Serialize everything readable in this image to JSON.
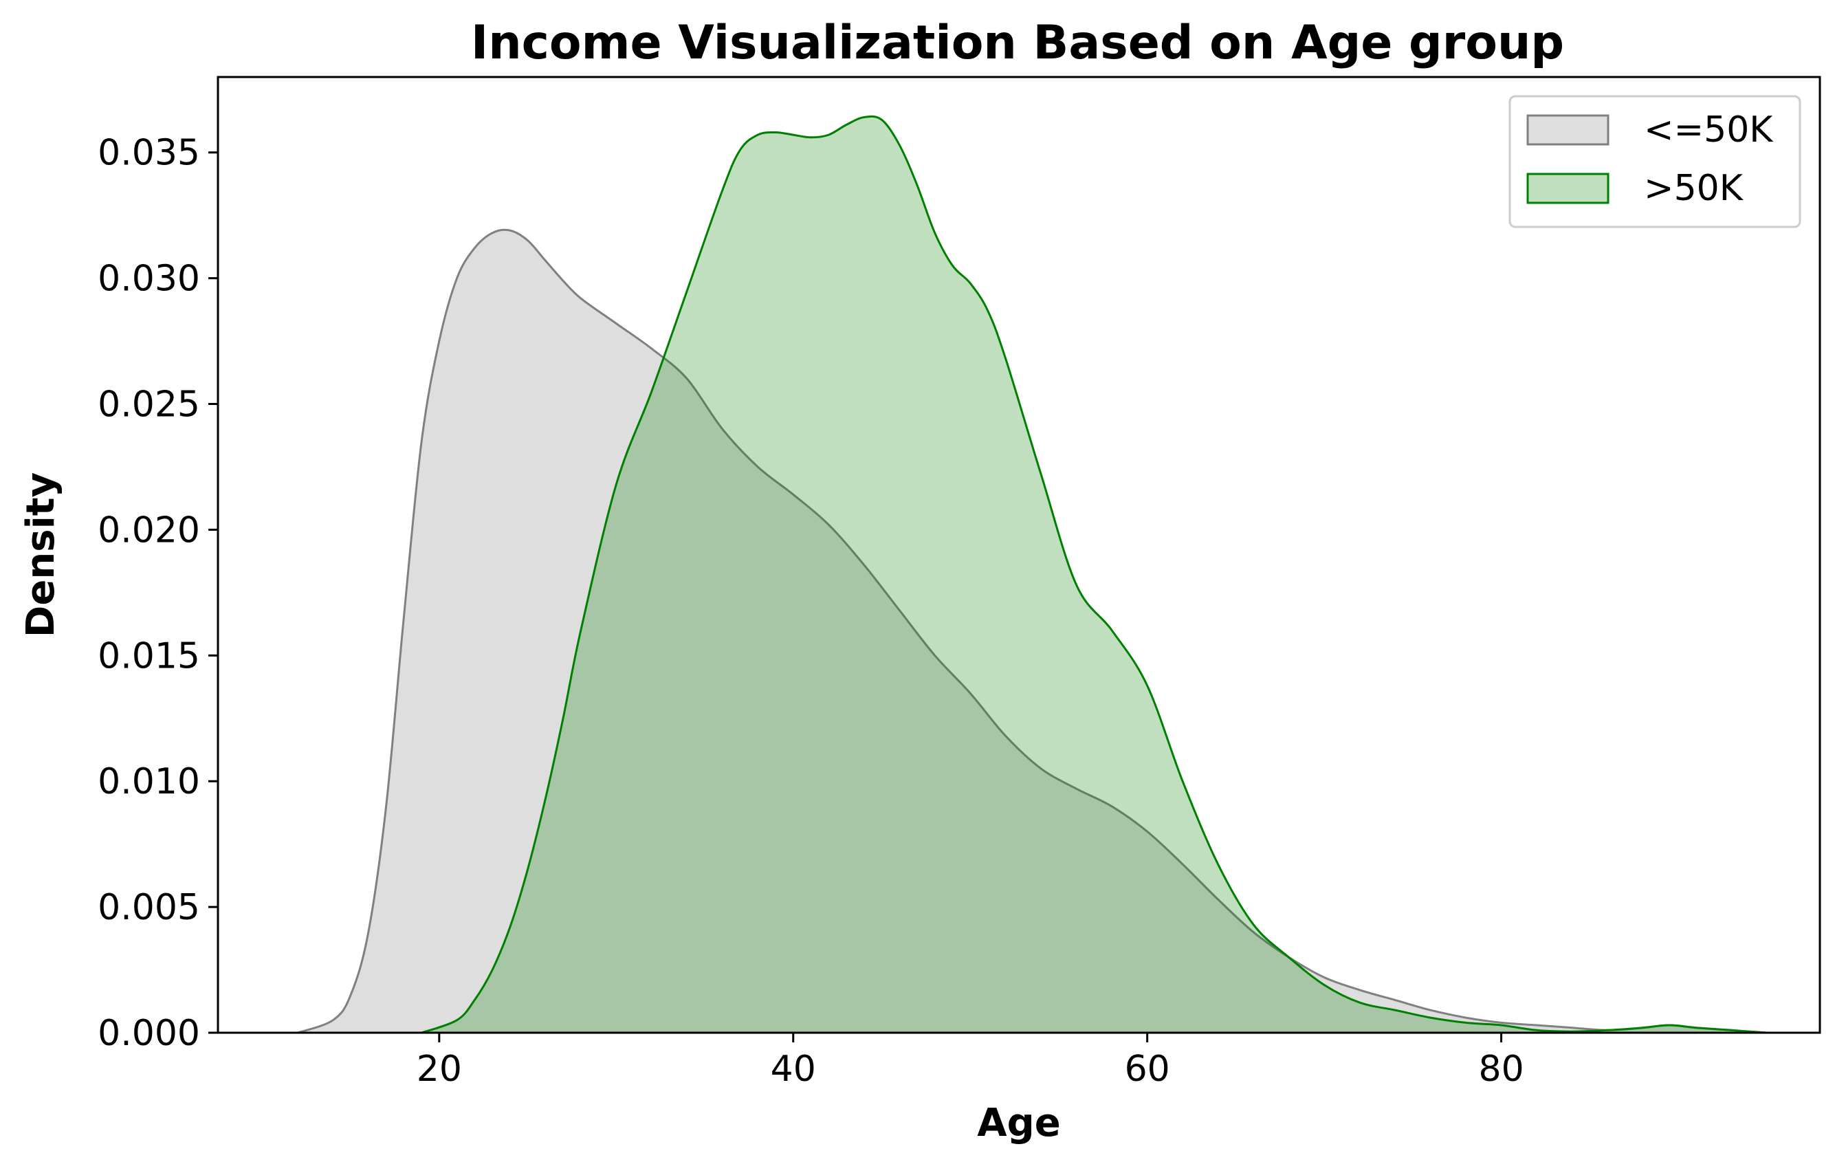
{
  "chart_data": {
    "type": "area",
    "title": "Income Visualization Based on Age group",
    "xlabel": "Age",
    "ylabel": "Density",
    "xlim": [
      7.5,
      98
    ],
    "ylim": [
      0,
      0.038
    ],
    "x_ticks": [
      20,
      40,
      60,
      80
    ],
    "y_ticks": [
      0.0,
      0.005,
      0.01,
      0.015,
      0.02,
      0.025,
      0.03,
      0.035
    ],
    "x_tick_labels": [
      "20",
      "40",
      "60",
      "80"
    ],
    "y_tick_labels": [
      "0.000",
      "0.005",
      "0.010",
      "0.015",
      "0.020",
      "0.025",
      "0.030",
      "0.035"
    ],
    "grid": false,
    "legend_placement": "top-right",
    "series": [
      {
        "name": "<=50K",
        "stroke": "#808080",
        "fill": "#dedede",
        "fill_opacity": 1,
        "x": [
          12,
          14,
          15,
          16,
          17,
          18,
          19,
          20,
          21,
          22,
          23,
          24,
          25,
          26,
          27,
          28,
          30,
          32,
          34,
          36,
          38,
          40,
          42,
          44,
          46,
          48,
          50,
          52,
          54,
          56,
          58,
          60,
          62,
          64,
          66,
          68,
          70,
          72,
          74,
          76,
          78,
          80,
          82,
          84,
          86,
          88,
          89.5,
          91,
          93,
          95
        ],
        "y": [
          0.0,
          0.0005,
          0.0015,
          0.004,
          0.009,
          0.0165,
          0.0235,
          0.0275,
          0.03,
          0.0312,
          0.0318,
          0.0319,
          0.0315,
          0.0307,
          0.0299,
          0.0292,
          0.0282,
          0.0272,
          0.026,
          0.024,
          0.0225,
          0.0214,
          0.0202,
          0.0186,
          0.0168,
          0.015,
          0.0135,
          0.0118,
          0.0105,
          0.0097,
          0.009,
          0.008,
          0.0067,
          0.0053,
          0.004,
          0.003,
          0.0022,
          0.0017,
          0.0013,
          0.0009,
          0.0006,
          0.0004,
          0.0003,
          0.0002,
          0.0001,
          0.0002,
          0.0003,
          0.0002,
          0.0001,
          0.0
        ]
      },
      {
        "name": ">50K",
        "stroke": "#008000",
        "fill": "#008000",
        "fill_opacity": 0.25,
        "x": [
          19,
          21,
          22,
          23,
          24,
          25,
          26,
          27,
          28,
          30,
          32,
          34,
          36,
          37,
          38,
          39,
          40,
          41,
          42,
          43,
          44,
          45,
          46,
          47,
          48,
          49,
          50,
          51,
          52,
          54,
          56,
          58,
          60,
          62,
          64,
          66,
          68,
          70,
          72,
          74,
          76,
          78,
          80,
          82,
          84,
          86,
          88,
          89.5,
          91,
          93,
          95
        ],
        "y": [
          0.0,
          0.0005,
          0.0013,
          0.0025,
          0.0042,
          0.0065,
          0.0093,
          0.0125,
          0.016,
          0.0218,
          0.0255,
          0.0295,
          0.0335,
          0.0351,
          0.0357,
          0.0358,
          0.0357,
          0.0356,
          0.0357,
          0.0361,
          0.0364,
          0.0363,
          0.0353,
          0.0337,
          0.0318,
          0.0305,
          0.0298,
          0.0287,
          0.0268,
          0.0222,
          0.0178,
          0.016,
          0.0138,
          0.01,
          0.0067,
          0.0043,
          0.003,
          0.0019,
          0.0012,
          0.0009,
          0.0006,
          0.0004,
          0.0003,
          0.0001,
          5e-05,
          0.0001,
          0.0002,
          0.0003,
          0.0002,
          0.0001,
          0.0
        ]
      }
    ]
  }
}
